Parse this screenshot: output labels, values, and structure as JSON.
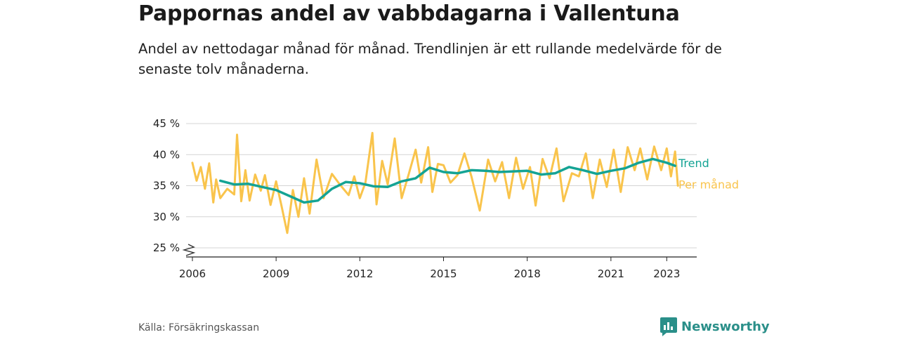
{
  "title": "Pappornas andel av vabbdagarna i Vallentuna",
  "subtitle": "Andel av nettodagar månad för månad. Trendlinjen är ett rullande medelvärde för de senaste tolv månaderna.",
  "source": "Källa: Försäkringskassan",
  "brand": {
    "name": "Newsworthy",
    "icon": "newsworthy-logo-icon",
    "color": "#2a8f89"
  },
  "chart_data": {
    "type": "line",
    "y_ticks": [
      "25 %",
      "30 %",
      "35 %",
      "40 %",
      "45 %"
    ],
    "x_ticks": [
      "2006",
      "2009",
      "2012",
      "2015",
      "2018",
      "2021",
      "2023"
    ],
    "ylim": [
      25,
      45
    ],
    "y_axis_break": true,
    "grid": true,
    "colors": {
      "trend": "#14a394",
      "monthly": "#f9c44c"
    },
    "series": [
      {
        "name": "Trend",
        "x": [
          2007.0,
          2007.5,
          2008.0,
          2008.5,
          2009.0,
          2009.5,
          2010.0,
          2010.5,
          2011.0,
          2011.5,
          2012.0,
          2012.5,
          2013.0,
          2013.5,
          2014.0,
          2014.5,
          2015.0,
          2015.5,
          2016.0,
          2016.5,
          2017.0,
          2017.5,
          2018.0,
          2018.5,
          2019.0,
          2019.5,
          2020.0,
          2020.5,
          2021.0,
          2021.5,
          2022.0,
          2022.5,
          2023.0,
          2023.3
        ],
        "values": [
          35.8,
          35.2,
          35.3,
          34.8,
          34.3,
          33.3,
          32.3,
          32.6,
          34.5,
          35.6,
          35.4,
          34.9,
          34.8,
          35.7,
          36.2,
          37.9,
          37.2,
          37.0,
          37.5,
          37.4,
          37.2,
          37.3,
          37.4,
          36.8,
          37.0,
          38.0,
          37.5,
          36.9,
          37.4,
          37.8,
          38.7,
          39.3,
          38.7,
          38.2
        ]
      },
      {
        "name": "Per månad",
        "x": [
          2006.0,
          2006.15,
          2006.3,
          2006.45,
          2006.6,
          2006.75,
          2006.85,
          2007.0,
          2007.25,
          2007.5,
          2007.6,
          2007.75,
          2007.9,
          2008.05,
          2008.25,
          2008.45,
          2008.6,
          2008.8,
          2009.0,
          2009.2,
          2009.4,
          2009.6,
          2009.8,
          2010.0,
          2010.2,
          2010.45,
          2010.7,
          2011.0,
          2011.3,
          2011.6,
          2011.8,
          2012.0,
          2012.2,
          2012.45,
          2012.6,
          2012.8,
          2013.0,
          2013.25,
          2013.5,
          2013.75,
          2014.0,
          2014.2,
          2014.45,
          2014.6,
          2014.8,
          2015.0,
          2015.25,
          2015.5,
          2015.75,
          2016.0,
          2016.3,
          2016.6,
          2016.85,
          2017.1,
          2017.35,
          2017.6,
          2017.85,
          2018.1,
          2018.3,
          2018.55,
          2018.8,
          2019.05,
          2019.3,
          2019.6,
          2019.85,
          2020.1,
          2020.35,
          2020.6,
          2020.85,
          2021.1,
          2021.35,
          2021.6,
          2021.85,
          2022.05,
          2022.3,
          2022.55,
          2022.8,
          2023.0,
          2023.15,
          2023.3,
          2023.4
        ],
        "values": [
          38.7,
          35.8,
          38.0,
          34.5,
          38.6,
          32.3,
          36.0,
          33.0,
          34.5,
          33.6,
          43.2,
          32.5,
          37.5,
          32.6,
          36.8,
          34.2,
          36.7,
          31.9,
          35.7,
          31.6,
          27.4,
          34.3,
          30.0,
          36.2,
          30.5,
          39.2,
          33.0,
          36.9,
          35.1,
          33.5,
          36.5,
          33.0,
          35.5,
          43.5,
          32.0,
          39.0,
          35.2,
          42.6,
          33.0,
          36.8,
          40.8,
          35.5,
          41.2,
          34.0,
          38.5,
          38.3,
          35.5,
          36.7,
          40.2,
          36.5,
          31.0,
          39.2,
          35.7,
          38.8,
          33.0,
          39.5,
          34.5,
          38.0,
          31.8,
          39.3,
          36.2,
          41.0,
          32.5,
          37.0,
          36.5,
          40.2,
          33.0,
          39.2,
          34.8,
          40.8,
          34.0,
          41.2,
          37.5,
          41.0,
          36.0,
          41.3,
          37.5,
          41.0,
          36.5,
          40.5,
          35.0
        ]
      }
    ]
  }
}
